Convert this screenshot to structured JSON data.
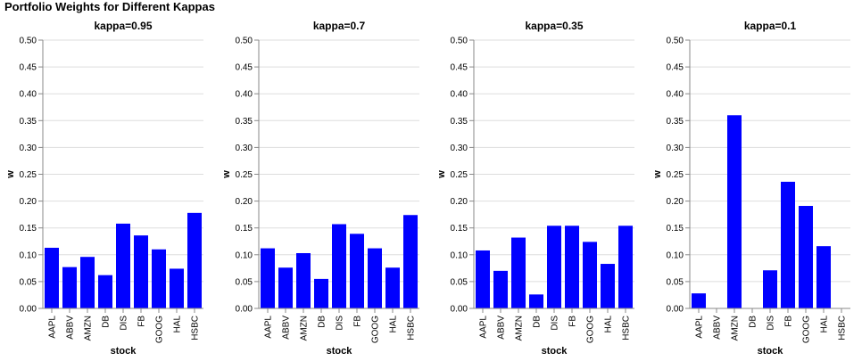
{
  "chart_data": {
    "type": "bar",
    "title": "Portfolio Weights for Different Kappas",
    "xlabel": "stock",
    "ylabel": "w",
    "ylim": [
      0,
      0.5
    ],
    "yticks": [
      "0.00",
      "0.05",
      "0.10",
      "0.15",
      "0.20",
      "0.25",
      "0.30",
      "0.35",
      "0.40",
      "0.45",
      "0.50"
    ],
    "categories": [
      "AAPL",
      "ABBV",
      "AMZN",
      "DB",
      "DIS",
      "FB",
      "GOOG",
      "HAL",
      "HSBC"
    ],
    "bar_color": "#0000ff",
    "grid": true,
    "panels": [
      {
        "title": "kappa=0.95",
        "values": [
          0.113,
          0.077,
          0.096,
          0.062,
          0.158,
          0.136,
          0.11,
          0.074,
          0.178
        ]
      },
      {
        "title": "kappa=0.7",
        "values": [
          0.112,
          0.076,
          0.103,
          0.055,
          0.157,
          0.139,
          0.112,
          0.076,
          0.174
        ]
      },
      {
        "title": "kappa=0.35",
        "values": [
          0.108,
          0.07,
          0.132,
          0.026,
          0.154,
          0.154,
          0.124,
          0.083,
          0.154
        ]
      },
      {
        "title": "kappa=0.1",
        "values": [
          0.028,
          0.0,
          0.36,
          0.0,
          0.071,
          0.236,
          0.191,
          0.116,
          0.0
        ]
      }
    ]
  }
}
